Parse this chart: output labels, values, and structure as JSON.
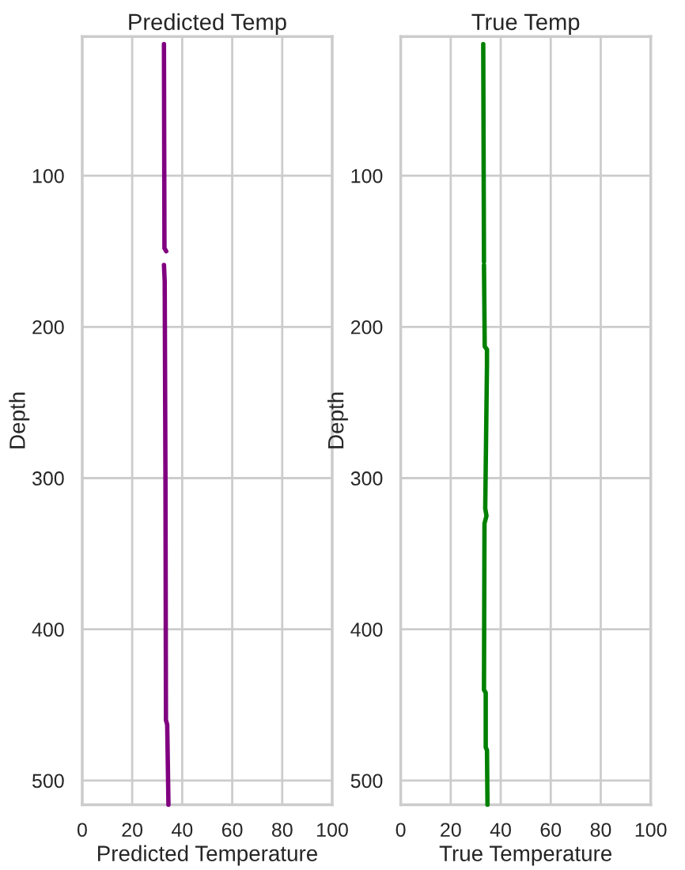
{
  "chart_data": [
    {
      "type": "line",
      "title": "Predicted Temp",
      "xlabel": "Predicted Temperature",
      "ylabel": "Depth",
      "xlim": [
        0,
        100
      ],
      "xticks": [
        0,
        20,
        40,
        60,
        80,
        100
      ],
      "ylim": [
        516,
        8
      ],
      "yticks": [
        100,
        200,
        300,
        400,
        500
      ],
      "grid": true,
      "series": [
        {
          "color": "#800080",
          "x": [
            32.7,
            32.9,
            33.6,
            null,
            32.7,
            33.0,
            33.3,
            33.5,
            34.0,
            34.5
          ],
          "values": [
            13,
            148,
            150,
            null,
            159,
            170,
            300,
            460,
            463,
            516
          ]
        }
      ]
    },
    {
      "type": "line",
      "title": "True Temp",
      "xlabel": "True Temperature",
      "ylabel": "Depth",
      "xlim": [
        0,
        100
      ],
      "xticks": [
        0,
        20,
        40,
        60,
        80,
        100
      ],
      "ylim": [
        516,
        8
      ],
      "yticks": [
        100,
        200,
        300,
        400,
        500
      ],
      "grid": true,
      "series": [
        {
          "color": "#008000",
          "x": [
            33.0,
            33.3,
            null,
            33.3,
            33.6,
            34.5,
            34.5,
            33.8,
            34.3,
            33.5,
            33.3,
            34.0,
            34.0,
            34.5,
            34.7
          ],
          "values": [
            13,
            157,
            null,
            159,
            213,
            215,
            225,
            320,
            325,
            330,
            440,
            442,
            478,
            480,
            516
          ]
        }
      ]
    }
  ]
}
